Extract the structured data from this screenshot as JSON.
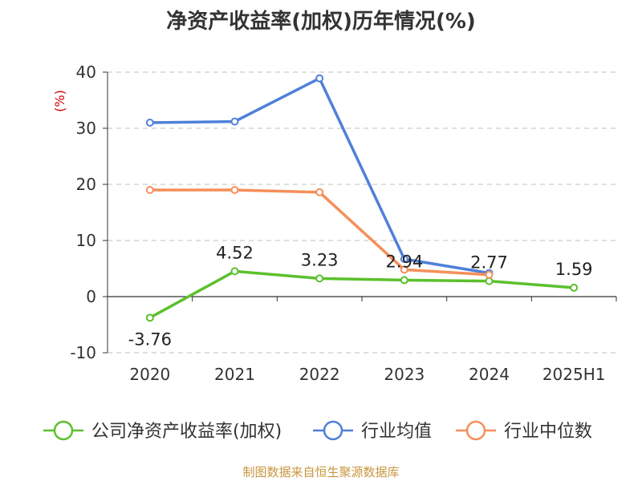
{
  "chart_data": {
    "type": "line",
    "title": "净资产收益率(加权)历年情况(%)",
    "ylabel": "(%)",
    "ylim": [
      -10,
      40
    ],
    "yticks": [
      -10,
      0,
      10,
      20,
      30,
      40
    ],
    "categories": [
      "2020",
      "2021",
      "2022",
      "2023",
      "2024",
      "2025H1"
    ],
    "grid": true,
    "legend_position": "bottom",
    "series": [
      {
        "name": "公司净资产收益率(加权)",
        "color": "#5cc02d",
        "values": [
          -3.76,
          4.52,
          3.23,
          2.94,
          2.77,
          1.59
        ],
        "labels": [
          "-3.76",
          "4.52",
          "3.23",
          "2.94",
          "2.77",
          "1.59"
        ]
      },
      {
        "name": "行业均值",
        "color": "#4f80d9",
        "values": [
          31.0,
          31.2,
          38.9,
          6.7,
          4.2,
          null
        ]
      },
      {
        "name": "行业中位数",
        "color": "#f58f5a",
        "values": [
          19.0,
          19.0,
          18.6,
          4.8,
          3.9,
          null
        ]
      }
    ]
  },
  "footer": {
    "source": "制图数据来自恒生聚源数据库"
  }
}
